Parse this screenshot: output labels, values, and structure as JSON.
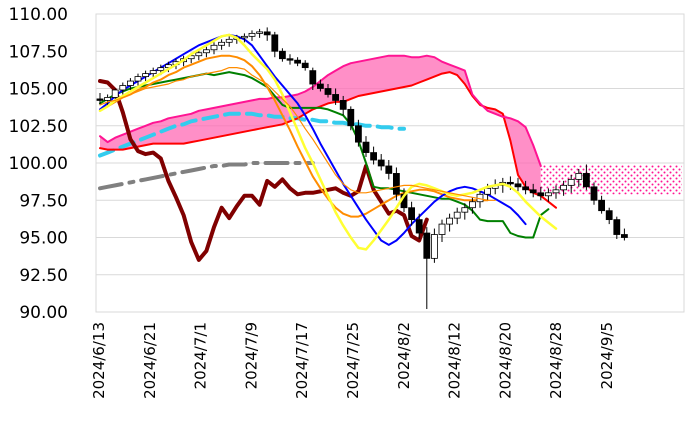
{
  "chart_data": {
    "type": "candlestick",
    "title": "",
    "xlabel": "",
    "ylabel": "",
    "ylim": [
      90,
      110
    ],
    "yticks": [
      "110.00",
      "107.50",
      "105.00",
      "102.50",
      "100.00",
      "97.50",
      "95.00",
      "92.50",
      "90.00"
    ],
    "xticks": [
      "2024/6/13",
      "2024/6/21",
      "2024/7/1",
      "2024/7/9",
      "2024/7/17",
      "2024/7/25",
      "2024/8/2",
      "2024/8/12",
      "2024/8/20",
      "2024/8/28",
      "2024/9/5"
    ],
    "grid": "horizontal",
    "legend": "none",
    "colors": {
      "up_candle": "#ffffff",
      "down_candle": "#000000",
      "conversion_line": "#0000ff",
      "base_line": "#ff8c00",
      "ma_yellow": "#ffff33",
      "ma_green": "#008000",
      "lagging_span": "#800000",
      "span_a": "#ff1493",
      "span_b": "#ff0000",
      "cloud_fill": "#ff69b4",
      "long_ma_cyan": "#33ccee",
      "long_ma_gray": "#808080"
    },
    "candles": [
      [
        104.3,
        104.7,
        103.9,
        104.2
      ],
      [
        104.2,
        104.6,
        103.8,
        104.4
      ],
      [
        104.4,
        105.0,
        104.1,
        104.9
      ],
      [
        104.9,
        105.4,
        104.6,
        105.2
      ],
      [
        105.2,
        105.7,
        104.9,
        105.5
      ],
      [
        105.5,
        106.0,
        105.2,
        105.8
      ],
      [
        105.8,
        106.2,
        105.5,
        106.0
      ],
      [
        106.0,
        106.4,
        105.7,
        106.2
      ],
      [
        106.2,
        106.6,
        105.9,
        106.4
      ],
      [
        106.4,
        106.8,
        106.1,
        106.6
      ],
      [
        106.6,
        107.0,
        106.3,
        106.8
      ],
      [
        106.8,
        107.2,
        106.5,
        107.0
      ],
      [
        107.0,
        107.4,
        106.7,
        107.2
      ],
      [
        107.2,
        107.6,
        106.9,
        107.4
      ],
      [
        107.4,
        107.8,
        107.1,
        107.6
      ],
      [
        107.6,
        108.1,
        107.3,
        107.9
      ],
      [
        107.9,
        108.3,
        107.6,
        108.1
      ],
      [
        108.1,
        108.5,
        107.8,
        108.3
      ],
      [
        108.3,
        108.6,
        108.0,
        108.4
      ],
      [
        108.4,
        108.7,
        108.1,
        108.5
      ],
      [
        108.5,
        108.9,
        108.2,
        108.7
      ],
      [
        108.7,
        109.0,
        108.4,
        108.8
      ],
      [
        108.8,
        109.1,
        108.2,
        108.6
      ],
      [
        108.6,
        108.8,
        107.1,
        107.5
      ],
      [
        107.5,
        107.7,
        106.8,
        107.0
      ],
      [
        107.0,
        107.3,
        106.6,
        106.9
      ],
      [
        106.9,
        107.1,
        106.5,
        106.7
      ],
      [
        106.7,
        106.9,
        106.2,
        106.4
      ],
      [
        106.2,
        106.4,
        104.9,
        105.3
      ],
      [
        105.3,
        105.6,
        104.8,
        105.0
      ],
      [
        105.0,
        105.3,
        104.4,
        104.6
      ],
      [
        104.6,
        105.0,
        103.9,
        104.2
      ],
      [
        104.2,
        104.5,
        103.2,
        103.6
      ],
      [
        103.6,
        103.8,
        102.2,
        102.5
      ],
      [
        102.5,
        102.9,
        101.1,
        101.4
      ],
      [
        101.4,
        101.8,
        100.4,
        100.7
      ],
      [
        100.7,
        101.1,
        99.9,
        100.2
      ],
      [
        100.2,
        100.6,
        99.5,
        99.8
      ],
      [
        99.8,
        100.2,
        98.9,
        99.3
      ],
      [
        99.3,
        99.7,
        97.5,
        97.9
      ],
      [
        97.9,
        98.3,
        96.7,
        97.0
      ],
      [
        97.0,
        97.4,
        95.8,
        96.2
      ],
      [
        96.2,
        96.6,
        94.9,
        95.3
      ],
      [
        95.3,
        95.7,
        90.2,
        93.6
      ],
      [
        93.6,
        95.6,
        93.3,
        95.2
      ],
      [
        95.2,
        96.2,
        94.7,
        95.9
      ],
      [
        95.9,
        96.6,
        95.4,
        96.3
      ],
      [
        96.3,
        97.0,
        95.9,
        96.7
      ],
      [
        96.7,
        97.3,
        96.2,
        97.0
      ],
      [
        97.0,
        97.7,
        96.6,
        97.4
      ],
      [
        97.4,
        98.1,
        97.0,
        97.9
      ],
      [
        97.9,
        98.6,
        97.5,
        98.3
      ],
      [
        98.3,
        98.9,
        97.9,
        98.5
      ],
      [
        98.5,
        99.0,
        98.0,
        98.7
      ],
      [
        98.7,
        99.1,
        98.2,
        98.6
      ],
      [
        98.6,
        99.0,
        98.1,
        98.4
      ],
      [
        98.4,
        98.8,
        97.9,
        98.2
      ],
      [
        98.2,
        98.6,
        97.7,
        98.0
      ],
      [
        98.0,
        98.4,
        97.5,
        97.8
      ],
      [
        97.8,
        98.3,
        97.4,
        98.0
      ],
      [
        98.0,
        98.5,
        97.6,
        98.2
      ],
      [
        98.2,
        98.8,
        97.8,
        98.5
      ],
      [
        98.5,
        99.2,
        98.0,
        98.9
      ],
      [
        98.9,
        99.6,
        98.4,
        99.3
      ],
      [
        99.3,
        99.9,
        98.2,
        98.4
      ],
      [
        98.4,
        98.7,
        97.2,
        97.5
      ],
      [
        97.5,
        97.8,
        96.6,
        96.8
      ],
      [
        96.8,
        97.0,
        95.9,
        96.2
      ],
      [
        96.2,
        96.4,
        94.9,
        95.2
      ],
      [
        95.2,
        95.6,
        94.8,
        95.0
      ]
    ],
    "series": [
      {
        "values": [
          103.6,
          104.0,
          104.5,
          104.9,
          105.2,
          105.5,
          105.8,
          106.1,
          106.4,
          106.7,
          107.0,
          107.3,
          107.6,
          107.9,
          108.1,
          108.3,
          108.5,
          108.6,
          108.5,
          108.3,
          107.9,
          107.2,
          106.5,
          105.8,
          105.2,
          104.6,
          104.0,
          103.2,
          102.3,
          101.3,
          100.4,
          99.5,
          98.6,
          97.8,
          97.0,
          96.2,
          95.5,
          94.8,
          94.5,
          94.8,
          95.3,
          95.9,
          96.4,
          96.9,
          97.4,
          97.8,
          98.1,
          98.3,
          98.4,
          98.3,
          98.1,
          97.9,
          97.6,
          97.3,
          97.0,
          96.5,
          95.9
        ]
      },
      {
        "values": [
          103.6,
          103.8,
          104.1,
          104.4,
          104.6,
          104.9,
          105.1,
          105.4,
          105.6,
          105.9,
          106.1,
          106.4,
          106.6,
          106.8,
          107.0,
          107.1,
          107.2,
          107.2,
          107.1,
          106.9,
          106.5,
          105.9,
          105.1,
          104.2,
          103.2,
          102.2,
          101.1,
          100.1,
          99.1,
          98.3,
          97.6,
          97.0,
          96.6,
          96.4,
          96.4,
          96.6,
          96.9,
          97.2,
          97.5,
          97.8,
          98.0,
          98.1,
          98.2,
          98.2,
          98.1,
          97.9,
          97.7,
          97.6,
          97.5,
          97.5,
          97.5,
          97.5
        ]
      },
      {
        "values": [
          103.9,
          104.1,
          104.2,
          104.4,
          104.6,
          104.8,
          105.0,
          105.1,
          105.2,
          105.3,
          105.5,
          105.6,
          105.8,
          105.9,
          106.0,
          106.1,
          106.2,
          106.4,
          106.4,
          106.3,
          105.9,
          105.6,
          105.3,
          104.8,
          104.3,
          103.8,
          103.1,
          102.3,
          101.6,
          100.8,
          100.0,
          99.2,
          98.6,
          98.2,
          98.0,
          98.0,
          98.1,
          98.2,
          98.3,
          98.4,
          98.5,
          98.5,
          98.4,
          98.3,
          98.2,
          98.1,
          98.0,
          97.9,
          97.8,
          97.7,
          97.6,
          97.5,
          97.5
        ]
      },
      {
        "values": [
          103.5,
          103.8,
          104.2,
          104.5,
          104.8,
          105.1,
          105.4,
          105.7,
          106.0,
          106.3,
          106.6,
          106.9,
          107.3,
          107.6,
          107.9,
          108.2,
          108.5,
          108.6,
          108.4,
          107.9,
          107.3,
          106.8,
          106.3,
          105.6,
          104.6,
          103.4,
          102.2,
          101.0,
          100.0,
          98.9,
          97.8,
          96.7,
          95.8,
          95.0,
          94.3,
          94.2,
          94.8,
          95.5,
          96.2,
          97.0,
          97.8,
          98.4,
          98.6,
          98.5,
          98.3,
          98.1,
          97.9,
          97.8,
          97.9,
          98.0,
          98.2,
          98.4,
          98.5,
          98.6,
          98.4,
          98.0,
          97.4,
          96.9,
          96.4,
          96.0,
          95.6
        ]
      },
      {
        "values": [
          104.0,
          104.3,
          104.6,
          104.8,
          105.0,
          105.1,
          105.2,
          105.3,
          105.4,
          105.5,
          105.6,
          105.7,
          105.8,
          105.9,
          106.0,
          105.9,
          106.0,
          106.1,
          106.0,
          105.9,
          105.7,
          105.4,
          105.1,
          104.5,
          103.9,
          103.7,
          103.7,
          103.7,
          103.7,
          103.7,
          103.6,
          103.4,
          103.2,
          102.6,
          101.5,
          100.0,
          98.4,
          98.3,
          98.3,
          98.2,
          98.1,
          98.0,
          97.9,
          97.8,
          97.7,
          97.6,
          97.6,
          97.4,
          97.2,
          96.8,
          96.2,
          96.1,
          96.1,
          96.1,
          95.3,
          95.1,
          95.0,
          95.0,
          96.5,
          96.9
        ]
      },
      {
        "values": [
          105.5,
          105.4,
          104.9,
          103.4,
          101.6,
          100.8,
          100.6,
          100.7,
          100.3,
          98.8,
          97.7,
          96.5,
          94.7,
          93.5,
          94.1,
          95.7,
          97.0,
          96.3,
          97.1,
          97.8,
          97.8,
          97.2,
          98.8,
          98.4,
          98.9,
          98.3,
          97.9,
          98.0,
          98.0,
          98.1,
          98.2,
          98.3,
          98.0,
          97.8,
          98.1,
          99.8,
          98.2,
          97.4,
          96.6,
          96.8,
          96.5,
          95.1,
          94.8,
          96.2
        ]
      },
      {
        "values": [
          101.8,
          101.4,
          101.7,
          101.9,
          102.1,
          102.3,
          102.5,
          102.7,
          102.8,
          103.0,
          103.1,
          103.2,
          103.3,
          103.5,
          103.6,
          103.7,
          103.8,
          103.9,
          104.0,
          104.1,
          104.2,
          104.3,
          104.3,
          104.4,
          104.4,
          104.5,
          104.6,
          104.8,
          105.1,
          105.5,
          105.9,
          106.2,
          106.5,
          106.7,
          106.8,
          106.9,
          107.0,
          107.1,
          107.2,
          107.2,
          107.2,
          107.1,
          107.1,
          107.2,
          107.1,
          106.8,
          106.6,
          106.4,
          106.2,
          104.6,
          104.0,
          103.5,
          103.3,
          103.1,
          103.0,
          102.8,
          102.4,
          101.2,
          99.8
        ]
      },
      {
        "values": [
          101.0,
          100.9,
          100.9,
          100.9,
          101.0,
          101.1,
          101.2,
          101.3,
          101.3,
          101.3,
          101.3,
          101.3,
          101.4,
          101.5,
          101.6,
          101.7,
          101.8,
          101.9,
          102.0,
          102.1,
          102.2,
          102.3,
          102.4,
          102.5,
          102.6,
          102.8,
          103.0,
          103.3,
          103.6,
          103.8,
          104.0,
          104.1,
          104.1,
          104.3,
          104.5,
          104.6,
          104.7,
          104.8,
          104.9,
          105.0,
          105.1,
          105.2,
          105.4,
          105.6,
          105.8,
          106.0,
          106.1,
          105.9,
          105.3,
          104.5,
          103.9,
          103.7,
          103.6,
          103.3,
          101.5,
          99.2,
          98.4,
          98.0,
          97.8,
          97.4,
          97.0
        ]
      },
      {
        "values": [
          100.5,
          100.7,
          100.9,
          101.1,
          101.3,
          101.5,
          101.7,
          101.9,
          102.1,
          102.3,
          102.5,
          102.6,
          102.8,
          102.9,
          103.0,
          103.1,
          103.2,
          103.3,
          103.3,
          103.3,
          103.3,
          103.2,
          103.2,
          103.1,
          103.1,
          103.0,
          103.0,
          102.9,
          102.9,
          102.8,
          102.8,
          102.7,
          102.7,
          102.6,
          102.6,
          102.5,
          102.5,
          102.4,
          102.4,
          102.3,
          102.3
        ]
      },
      {
        "values": [
          98.3,
          98.4,
          98.5,
          98.6,
          98.7,
          98.8,
          98.9,
          99.0,
          99.1,
          99.2,
          99.3,
          99.4,
          99.5,
          99.6,
          99.7,
          99.8,
          99.8,
          99.9,
          99.9,
          99.9,
          100.0,
          100.0,
          100.0,
          100.0,
          100.0,
          100.0,
          100.0,
          100.0,
          100.0
        ]
      }
    ]
  }
}
